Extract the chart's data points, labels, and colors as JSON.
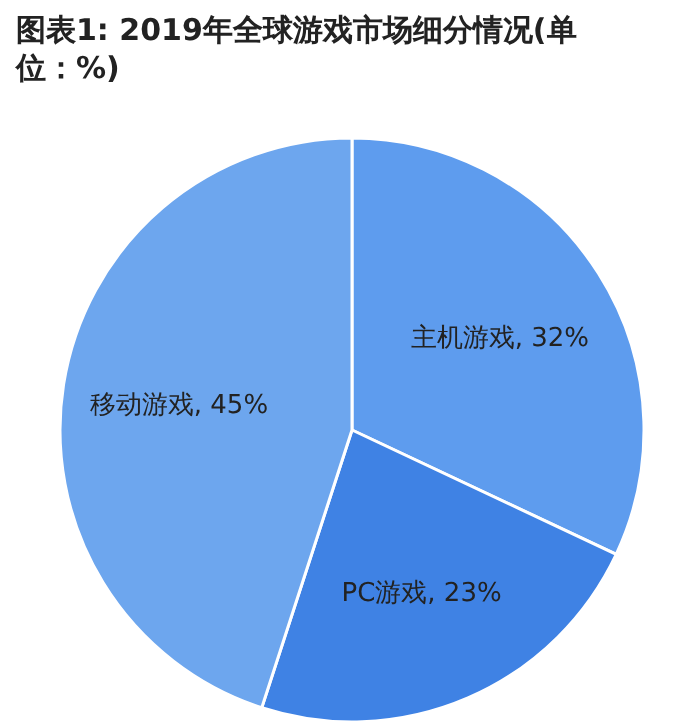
{
  "chart_data": {
    "type": "pie",
    "title": "图表1: 2019年全球游戏市场细分情况(单位：%)",
    "categories": [
      "主机游戏",
      "PC游戏",
      "移动游戏"
    ],
    "values": [
      32,
      23,
      45
    ],
    "value_labels": [
      "32%",
      "23%",
      "45%"
    ],
    "colors": [
      "#5e9cee",
      "#3f82e4",
      "#6da6ee"
    ]
  }
}
